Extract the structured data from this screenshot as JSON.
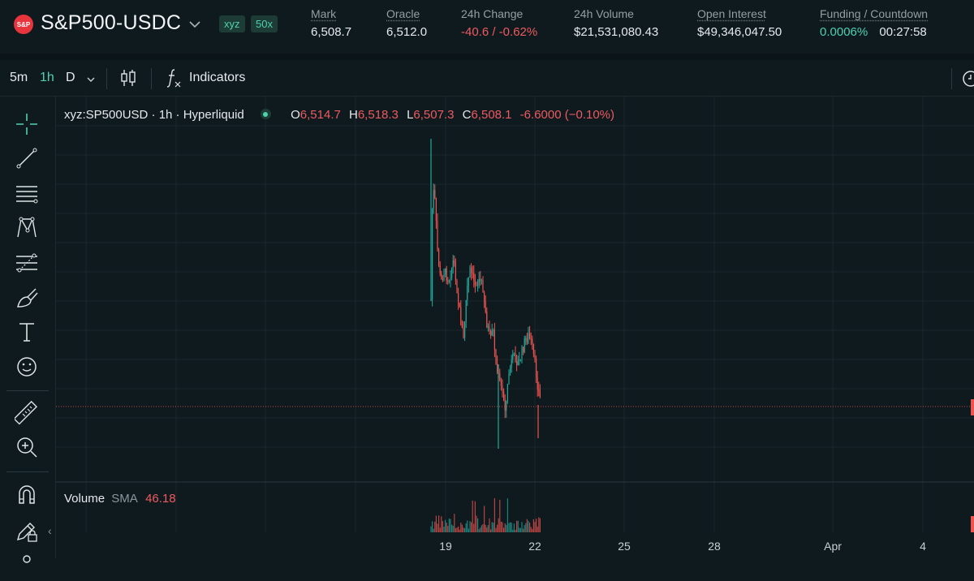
{
  "header": {
    "logo_text": "S&P",
    "symbol": "S&P500-USDC",
    "dex_badge": "xyz",
    "leverage_badge": "50x",
    "stats": {
      "mark": {
        "label": "Mark",
        "value": "6,508.7"
      },
      "oracle": {
        "label": "Oracle",
        "value": "6,512.0"
      },
      "change": {
        "label": "24h Change",
        "value": "-40.6 / -0.62%"
      },
      "volume": {
        "label": "24h Volume",
        "value": "$21,531,080.43"
      },
      "open_interest": {
        "label": "Open Interest",
        "value": "$49,346,047.50"
      },
      "funding": {
        "label": "Funding / Countdown",
        "rate": "0.0006%",
        "countdown": "00:27:58"
      }
    }
  },
  "toolbar": {
    "timeframes": [
      "5m",
      "1h",
      "D"
    ],
    "active_timeframe": "1h",
    "indicators_label": "Indicators"
  },
  "legend": {
    "symbol": "xyz:SP500USD · 1h · Hyperliquid",
    "o_label": "O",
    "o": "6,514.7",
    "h_label": "H",
    "h": "6,518.3",
    "l_label": "L",
    "l": "6,507.3",
    "c_label": "C",
    "c": "6,508.1",
    "change": "-6.6000 (−0.10%)"
  },
  "volume_legend": {
    "label": "Volume",
    "sma": "SMA",
    "value": "46.18"
  },
  "x_axis": [
    "19",
    "22",
    "25",
    "28",
    "Apr",
    "4"
  ],
  "colors": {
    "up": "#26a69a",
    "down": "#ef5350",
    "accent": "#4fd1b0",
    "background": "#0f1a1f"
  },
  "icons": [
    "crosshair-icon",
    "trend-line-icon",
    "horizontal-lines-icon",
    "pattern-icon",
    "fib-icon",
    "brush-icon",
    "text-icon",
    "emoji-icon",
    "ruler-icon",
    "zoom-in-icon",
    "magnet-icon",
    "lock-draw-icon"
  ]
}
